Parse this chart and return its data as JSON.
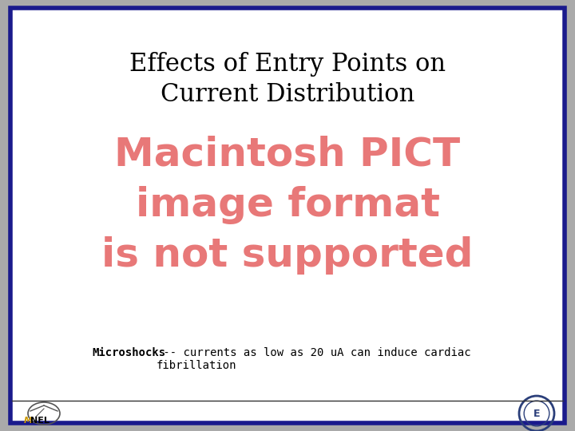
{
  "title_line1": "Effects of Entry Points on",
  "title_line2": "Current Distribution",
  "title_color": "#000000",
  "title_fontsize": 22,
  "pict_text": "Macintosh PICT\nimage format\nis not supported",
  "pict_color": "#E87878",
  "pict_fontsize": 36,
  "caption_bold": "Microshocks",
  "caption_normal": " -- currents as low as 20 uA can induce cardiac\nfibrillation",
  "caption_fontsize": 10,
  "caption_color": "#000000",
  "background_color": "#FFFFFF",
  "border_color": "#1A1A8C",
  "border_linewidth": 4,
  "figure_bg": "#AAAAAA",
  "mnel_color": "#CC9900",
  "badge_color": "#2B3F7A"
}
